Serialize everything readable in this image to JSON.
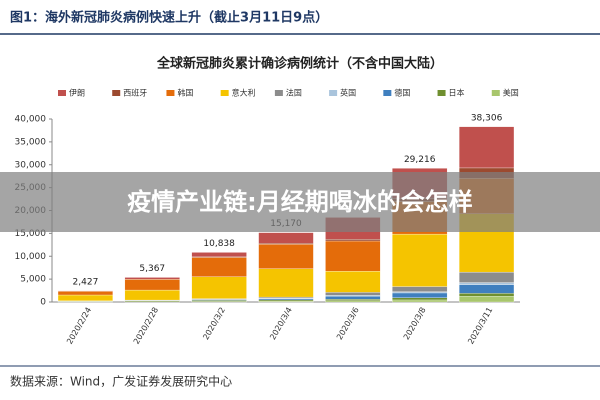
{
  "chart_data": {
    "type": "stacked_bar",
    "header": "图1：海外新冠肺炎病例快速上升（截止3月11日9点）",
    "title": "全球新冠肺炎累计确诊病例统计（不含中国大陆）",
    "banner": "疫情产业链:月经期喝冰的会怎样",
    "source": "数据来源：Wind，广发证券发展研究中心",
    "categories": [
      "2020/2/24",
      "2020/2/28",
      "2020/3/2",
      "2020/3/4",
      "2020/3/6",
      "2020/3/8",
      "2020/3/11"
    ],
    "series": [
      {
        "name": "伊朗",
        "color": "#c0504d",
        "values": [
          61,
          388,
          978,
          2336,
          4747,
          6566,
          9000
        ]
      },
      {
        "name": "西班牙",
        "color": "#9c4a2f",
        "values": [
          2,
          32,
          120,
          222,
          400,
          673,
          2277
        ]
      },
      {
        "name": "韩国",
        "color": "#e46c0a",
        "values": [
          833,
          2337,
          4212,
          5328,
          6593,
          7134,
          7755
        ]
      },
      {
        "name": "意大利",
        "color": "#f5c400",
        "values": [
          1281,
          2186,
          4784,
          6207,
          4636,
          11466,
          12742
        ]
      },
      {
        "name": "法国",
        "color": "#8c8c8c",
        "values": [
          12,
          57,
          191,
          285,
          653,
          1126,
          2281
        ]
      },
      {
        "name": "英国",
        "color": "#a9c4dc",
        "values": [
          13,
          20,
          40,
          87,
          164,
          273,
          456
        ]
      },
      {
        "name": "德国",
        "color": "#3f7fbf",
        "values": [
          16,
          57,
          159,
          262,
          670,
          1040,
          1908
        ]
      },
      {
        "name": "日本",
        "color": "#6f8f2f",
        "values": [
          156,
          228,
          254,
          293,
          360,
          488,
          620
        ]
      },
      {
        "name": "美国",
        "color": "#a8c66c",
        "values": [
          53,
          62,
          100,
          150,
          260,
          450,
          1267
        ]
      }
    ],
    "totals": [
      2427,
      5367,
      10838,
      15170,
      null,
      29216,
      38306
    ],
    "value_labels": [
      "2,427",
      "5,367",
      "10,838",
      "15,170",
      null,
      "29,216",
      "38,306"
    ],
    "ylim": [
      0,
      40000
    ],
    "yticks": [
      {
        "value": 0,
        "label": "0"
      },
      {
        "value": 5000,
        "label": "5,000"
      },
      {
        "value": 10000,
        "label": "10,000"
      },
      {
        "value": 15000,
        "label": "15,000"
      },
      {
        "value": 20000,
        "label": "20,000"
      },
      {
        "value": 25000,
        "label": "25,000"
      },
      {
        "value": 30000,
        "label": "30,000"
      },
      {
        "value": 35000,
        "label": "35,000"
      },
      {
        "value": 40000,
        "label": "40,000"
      }
    ],
    "grid": false
  }
}
